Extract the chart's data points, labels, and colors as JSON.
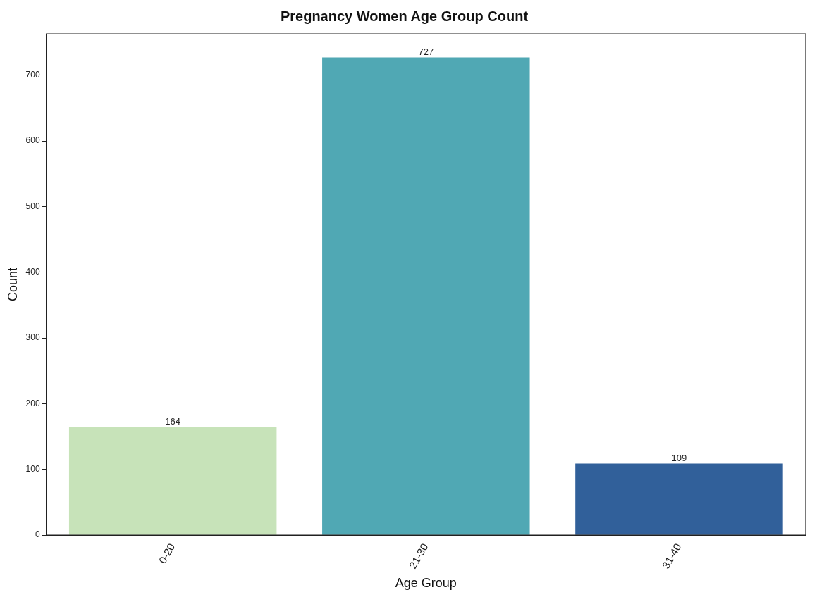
{
  "chart_data": {
    "type": "bar",
    "title": "Pregnancy Women Age Group Count",
    "xlabel": "Age Group",
    "ylabel": "Count",
    "categories": [
      "0-20",
      "21-30",
      "31-40"
    ],
    "values": [
      164,
      727,
      109
    ],
    "colors": [
      "#c7e3b9",
      "#50a8b4",
      "#31609a"
    ],
    "ylim": [
      0,
      763
    ],
    "yticks": [
      0,
      100,
      200,
      300,
      400,
      500,
      600,
      700
    ],
    "grid": false,
    "legend": false,
    "data_labels": true
  }
}
